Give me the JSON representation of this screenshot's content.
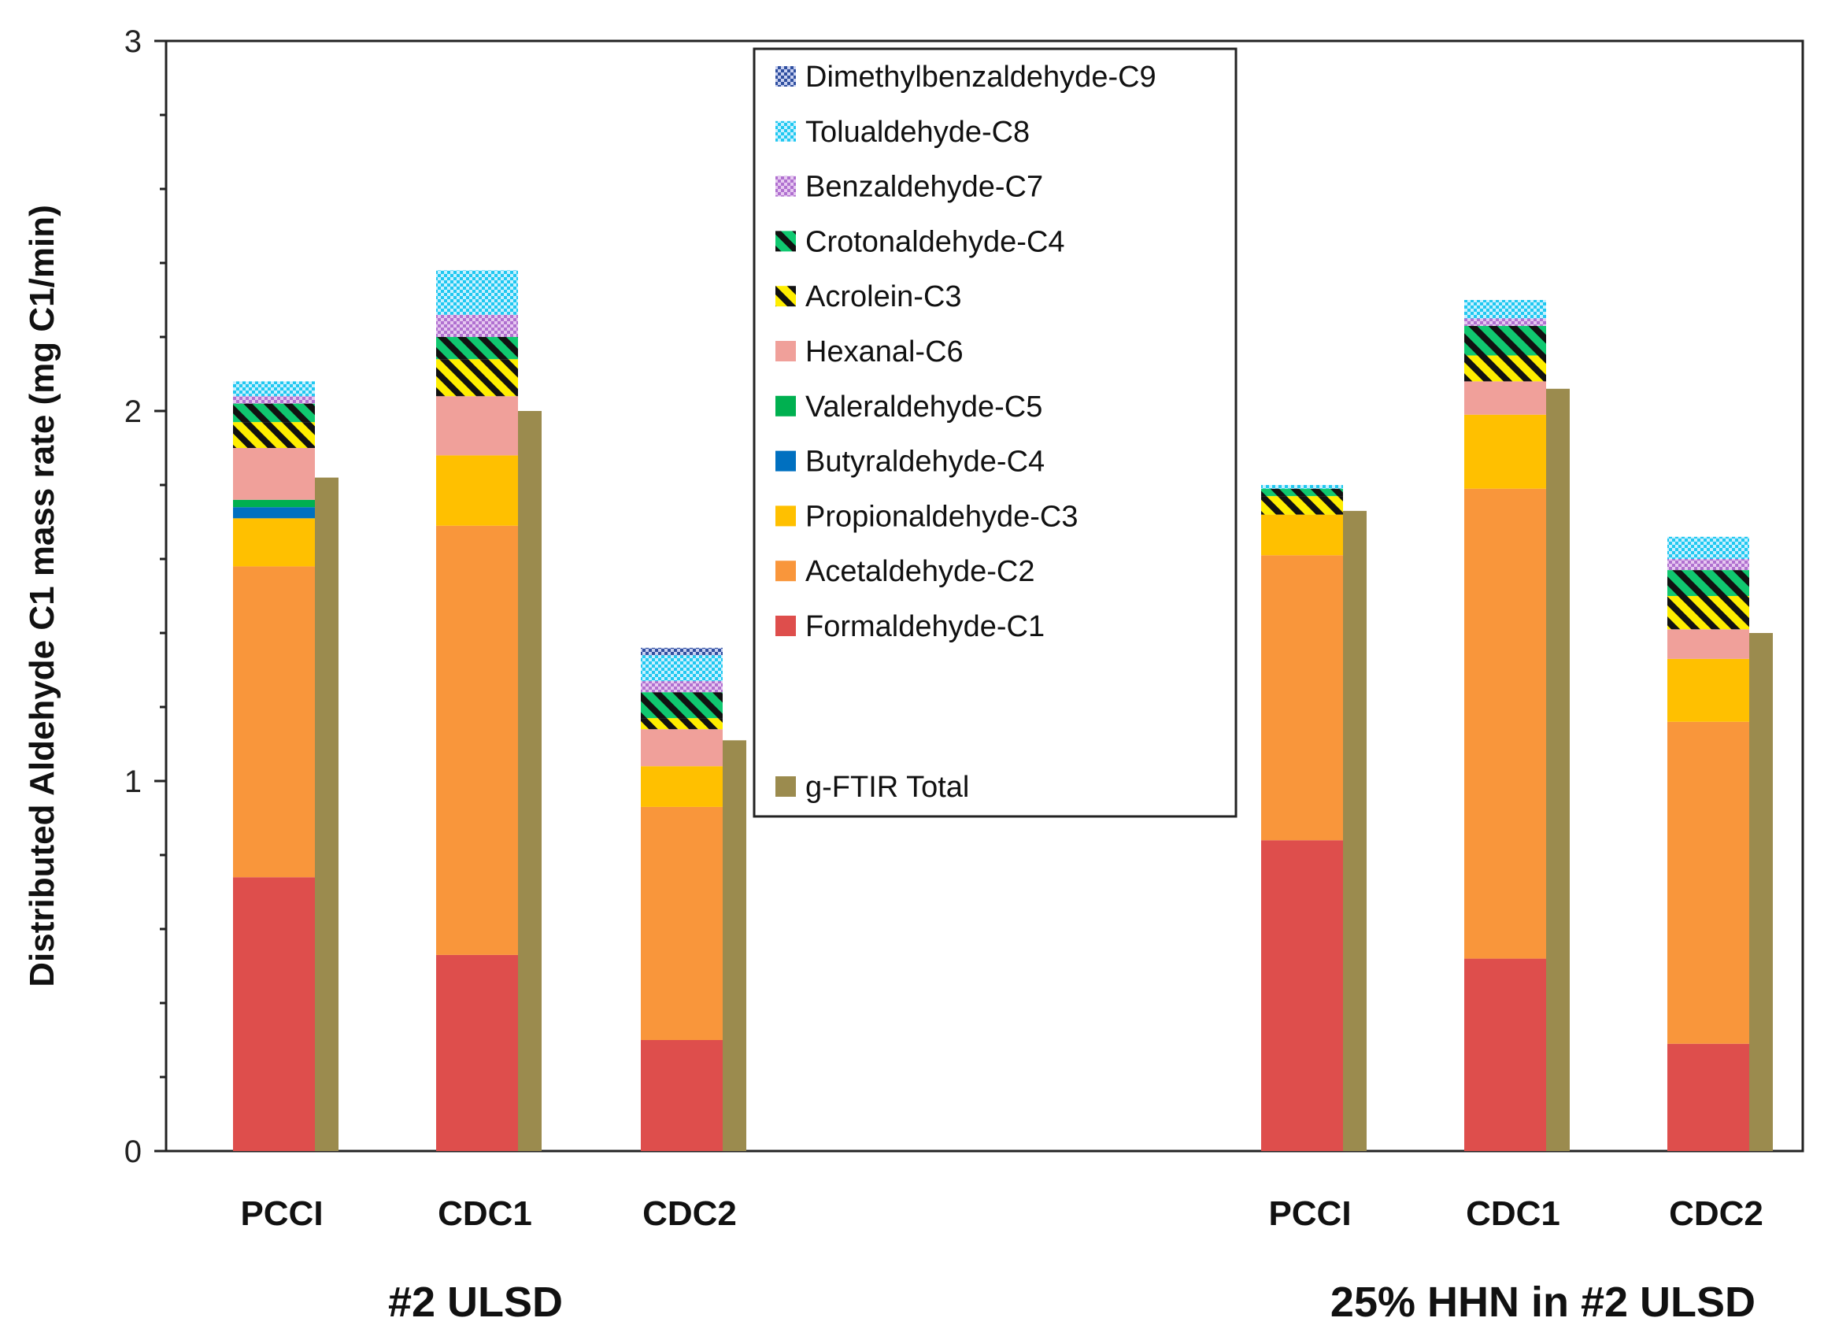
{
  "chart_data": {
    "type": "bar",
    "stacked": true,
    "ylabel": "Distributed  Aldehyde C1 mass rate (mg C1/min)",
    "ylim": [
      0,
      3
    ],
    "yticks": [
      "0",
      "1",
      "2",
      "3"
    ],
    "groups": [
      {
        "label": "#2 ULSD",
        "categories": [
          "PCCI",
          "CDC1",
          "CDC2"
        ]
      },
      {
        "label": "25% HHN in #2 ULSD",
        "categories": [
          "PCCI",
          "CDC1",
          "CDC2"
        ]
      }
    ],
    "categories": [
      "PCCI",
      "CDC1",
      "CDC2",
      "PCCI",
      "CDC1",
      "CDC2"
    ],
    "series": [
      {
        "name": "Formaldehyde-C1",
        "color": "#de4e4c",
        "pattern": "solid",
        "values": [
          0.74,
          0.53,
          0.3,
          0.84,
          0.52,
          0.29
        ]
      },
      {
        "name": "Acetaldehyde-C2",
        "color": "#f9963b",
        "pattern": "solid",
        "values": [
          0.84,
          1.16,
          0.63,
          0.77,
          1.27,
          0.87
        ]
      },
      {
        "name": "Propionaldehyde-C3",
        "color": "#ffc000",
        "pattern": "solid",
        "values": [
          0.13,
          0.19,
          0.11,
          0.11,
          0.2,
          0.17
        ]
      },
      {
        "name": "Butyraldehyde-C4",
        "color": "#0070c0",
        "pattern": "solid",
        "values": [
          0.03,
          0.0,
          0.0,
          0.0,
          0.0,
          0.0
        ]
      },
      {
        "name": "Valeraldehyde-C5",
        "color": "#00b050",
        "pattern": "solid",
        "values": [
          0.02,
          0.0,
          0.0,
          0.0,
          0.0,
          0.0
        ]
      },
      {
        "name": "Hexanal-C6",
        "color": "#f0a09a",
        "pattern": "solid",
        "values": [
          0.14,
          0.16,
          0.1,
          0.0,
          0.09,
          0.08
        ]
      },
      {
        "name": "Acrolein-C3",
        "color": "#ffee00",
        "pattern": "stripes",
        "values": [
          0.07,
          0.1,
          0.03,
          0.05,
          0.07,
          0.09
        ]
      },
      {
        "name": "Crotonaldehyde-C4",
        "color": "#10c870",
        "pattern": "stripes",
        "values": [
          0.05,
          0.06,
          0.07,
          0.02,
          0.08,
          0.07
        ]
      },
      {
        "name": "Benzaldehyde-C7",
        "color": "#b070d0",
        "pattern": "dots",
        "values": [
          0.02,
          0.06,
          0.03,
          0.0,
          0.02,
          0.03
        ]
      },
      {
        "name": "Tolualdehyde-C8",
        "color": "#20c8f0",
        "pattern": "dots",
        "values": [
          0.04,
          0.12,
          0.07,
          0.01,
          0.05,
          0.06
        ]
      },
      {
        "name": "Dimethylbenzaldehyde-C9",
        "color": "#3050a0",
        "pattern": "dots",
        "values": [
          0.0,
          0.0,
          0.02,
          0.0,
          0.0,
          0.0
        ]
      }
    ],
    "total_series": {
      "name": "g-FTIR Total",
      "color": "#9b8b4e",
      "values": [
        1.82,
        2.0,
        1.11,
        1.73,
        2.06,
        1.4
      ]
    },
    "legend_position": "top-center"
  }
}
